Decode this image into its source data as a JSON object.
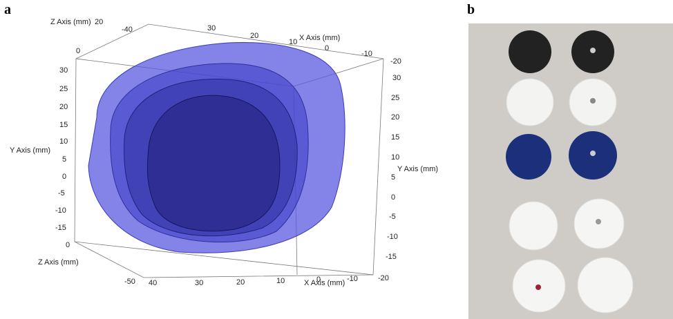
{
  "panel_a": {
    "label": "a",
    "axis_titles": [
      "Z Axis (mm)",
      "X Axis (mm)",
      "Y Axis (mm)",
      "Y Axis (mm)",
      "Z Axis (mm)",
      "X Axis (mm)"
    ],
    "tick_labels": [
      "20",
      "-40",
      "0",
      "30",
      "20",
      "10",
      "0",
      "-10",
      "-20",
      "30",
      "25",
      "20",
      "15",
      "10",
      "5",
      "0",
      "-5",
      "-10",
      "-15",
      "30",
      "25",
      "20",
      "15",
      "10",
      "5",
      "0",
      "-5",
      "-10",
      "-15",
      "0",
      "-50",
      "40",
      "30",
      "20",
      "10",
      "0",
      "-10",
      "-20"
    ]
  },
  "panel_b": {
    "label": "b"
  }
}
